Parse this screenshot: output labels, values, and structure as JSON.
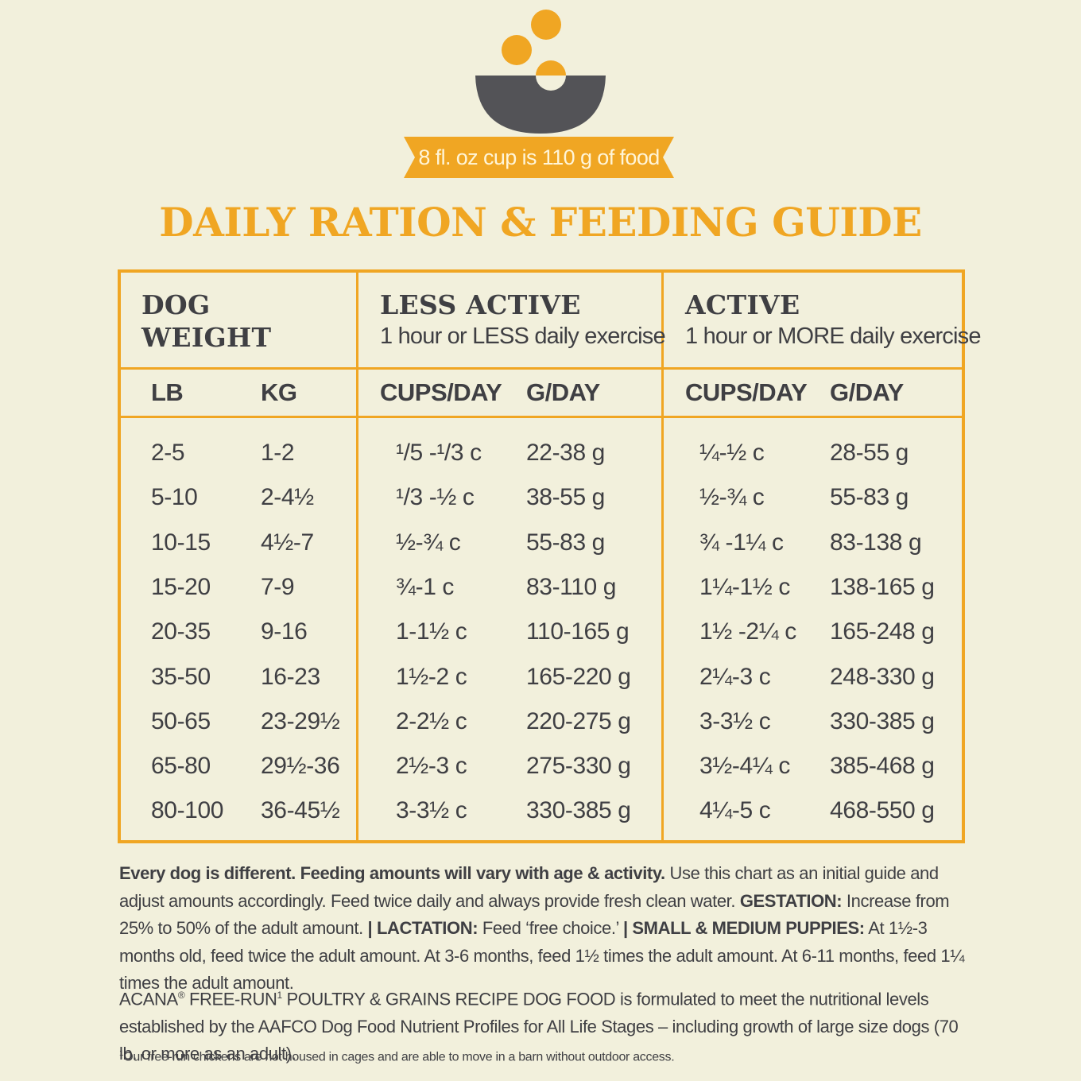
{
  "banner": {
    "text": "8 fl. oz cup is 110 g of food"
  },
  "title": "DAILY RATION & FEEDING GUIDE",
  "table": {
    "groups": [
      {
        "title_line1": "DOG",
        "title_line2": "WEIGHT",
        "subtitle": ""
      },
      {
        "title_line1": "LESS ACTIVE",
        "title_line2": "",
        "subtitle": "1 hour or LESS daily exercise"
      },
      {
        "title_line1": "ACTIVE",
        "title_line2": "",
        "subtitle": "1 hour or MORE daily exercise"
      }
    ],
    "columns": [
      "LB",
      "KG",
      "CUPS/DAY",
      "G/DAY",
      "CUPS/DAY",
      "G/DAY"
    ],
    "rows": [
      [
        "2-5",
        "1-2",
        "¹/5 -¹/3 c",
        "22-38 g",
        "¼-½ c",
        "28-55 g"
      ],
      [
        "5-10",
        "2-4½",
        "¹/3 -½ c",
        "38-55 g",
        "½-¾ c",
        "55-83 g"
      ],
      [
        "10-15",
        "4½-7",
        "½-¾ c",
        "55-83 g",
        "¾ -1¼ c",
        "83-138 g"
      ],
      [
        "15-20",
        "7-9",
        "¾-1 c",
        "83-110 g",
        "1¼-1½ c",
        "138-165 g"
      ],
      [
        "20-35",
        "9-16",
        "1-1½ c",
        "110-165 g",
        "1½ -2¼ c",
        "165-248 g"
      ],
      [
        "35-50",
        "16-23",
        "1½-2 c",
        "165-220 g",
        "2¼-3 c",
        "248-330 g"
      ],
      [
        "50-65",
        "23-29½",
        "2-2½ c",
        "220-275 g",
        "3-3½ c",
        "330-385 g"
      ],
      [
        "65-80",
        "29½-36",
        "2½-3 c",
        "275-330 g",
        "3½-4¼ c",
        "385-468 g"
      ],
      [
        "80-100",
        "36-45½",
        "3-3½ c",
        "330-385 g",
        "4¼-5 c",
        "468-550 g"
      ]
    ]
  },
  "notes": {
    "p1_bold1": "Every dog is different. Feeding amounts will vary with age & activity.",
    "p1_text1": " Use this chart as an initial guide and adjust amounts accordingly. Feed twice daily and always provide fresh clean water. ",
    "p1_bold2": "GESTATION:",
    "p1_text2": " Increase from 25% to 50% of the adult amount. ",
    "p1_bold3": "| LACTATION:",
    "p1_text3": " Feed ‘free choice.’ ",
    "p1_bold4": "| SMALL & MEDIUM PUPPIES:",
    "p1_text4": " At 1½-3 months old, feed twice the adult amount. At 3-6 months, feed 1½ times the adult amount. At 6-11 months, feed 1¼ times the adult amount.",
    "p2_a": "ACANA",
    "p2_reg": "®",
    "p2_b": " FREE-RUN",
    "p2_sup": "1",
    "p2_c": " POULTRY & GRAINS RECIPE DOG FOOD is formulated to meet the nutritional levels established by the AAFCO Dog Food Nutrient Profiles for All Life Stages – including growth of large size dogs (70 lb. or more as an adult).",
    "footnote_sup": "1",
    "footnote": "Our free-run chickens are not housed in cages and are able to move in a barn without outdoor access."
  },
  "colors": {
    "accent": "#f0a623",
    "text": "#3f3f43",
    "background": "#f2f0dc"
  }
}
